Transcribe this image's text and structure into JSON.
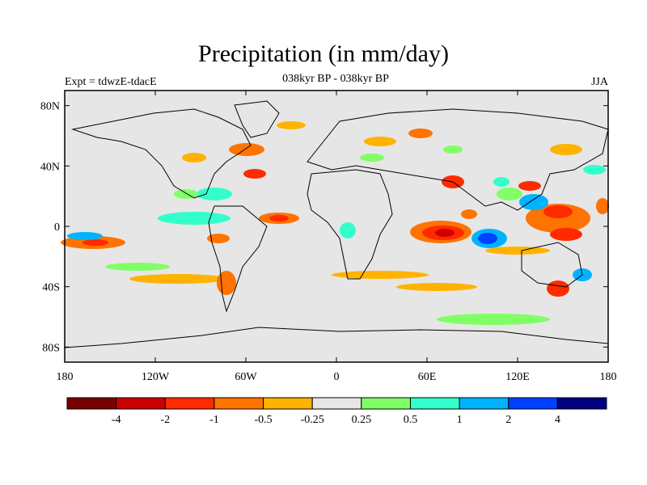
{
  "title": "Precipitation (in mm/day)",
  "subtitle": "038kyr BP - 038kyr BP",
  "left_label": "Expt = tdwzE-tdacE",
  "right_label": "JJA",
  "map": {
    "background_color": "#e6e6e6",
    "lat_ticks": [
      "80N",
      "40N",
      "0",
      "40S",
      "80S"
    ],
    "lon_ticks": [
      "180",
      "120W",
      "60W",
      "0",
      "60E",
      "120E",
      "180"
    ]
  },
  "colorbar": {
    "colors": [
      "#7a0000",
      "#cc0000",
      "#ff2a00",
      "#ff7300",
      "#ffb300",
      "#e6e6e6",
      "#80ff66",
      "#33ffcc",
      "#00b3ff",
      "#0040ff",
      "#000080"
    ],
    "labels": [
      "-4",
      "-2",
      "-1",
      "-0.5",
      "-0.25",
      "0.25",
      "0.5",
      "1",
      "2",
      "4"
    ]
  }
}
